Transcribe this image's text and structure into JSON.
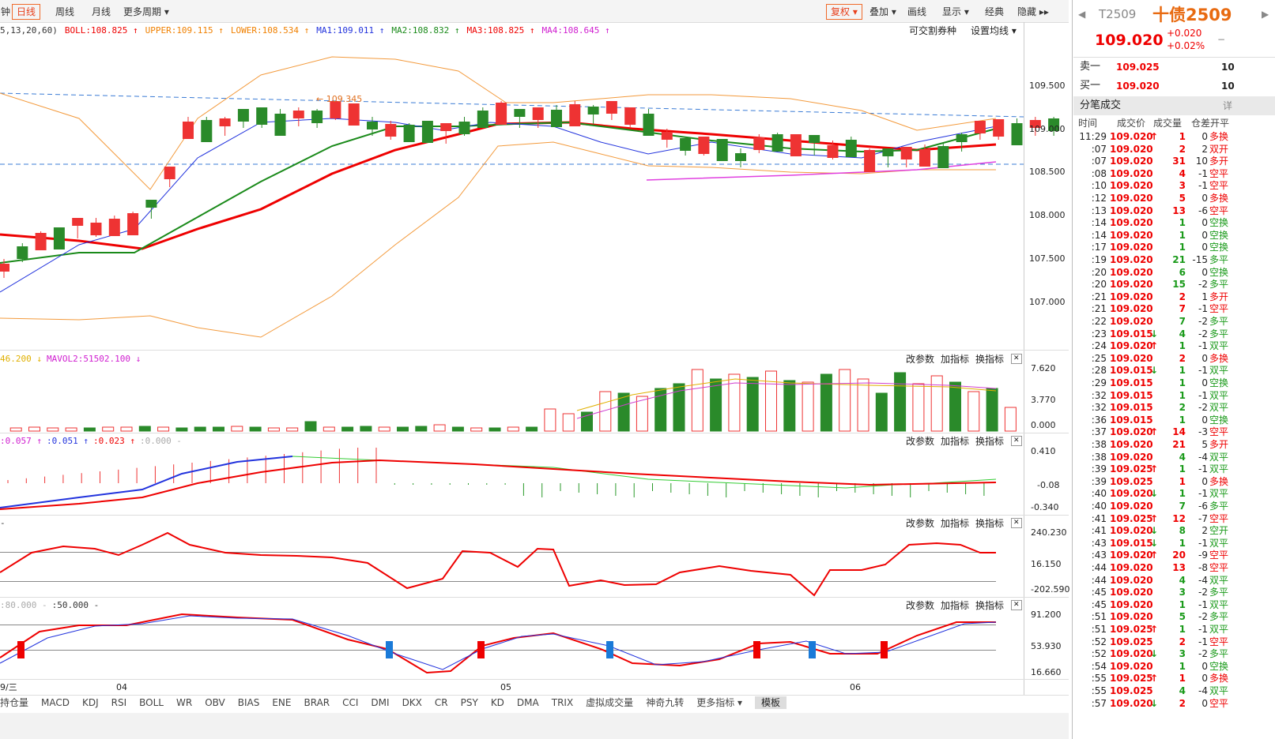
{
  "toolbar": {
    "left_tabs": [
      "钟",
      "日线",
      "周线",
      "月线",
      "更多周期 ▾"
    ],
    "right_tools": [
      "复权 ▾",
      "叠加 ▾",
      "画线",
      "显示 ▾",
      "经典",
      "隐藏 ▸▸"
    ]
  },
  "indicator_line": {
    "params": "5,13,20,60)",
    "items": [
      "BOLL:108.825 ↑",
      "UPPER:109.115 ↑",
      "LOWER:108.534 ↑",
      "MA1:109.011 ↑",
      "MA2:108.832 ↑",
      "MA3:108.825 ↑",
      "MA4:108.645 ↑"
    ],
    "links": [
      "可交割券种",
      "设置均线 ▾"
    ]
  },
  "price_axis": [
    "109.500",
    "109.000",
    "108.500",
    "108.000",
    "107.500",
    "107.000"
  ],
  "annotation": "← 109.345",
  "panels": [
    {
      "legend": [
        "46.200 ↓",
        "MAVOL2:51502.100 ↓"
      ],
      "axis": [
        "7.620",
        "3.770",
        "0.000"
      ]
    },
    {
      "legend": [
        ":0.057 ↑",
        ":0.051 ↑",
        ":0.023 ↑",
        ":0.000 -"
      ],
      "axis": [
        "0.410",
        "-0.08",
        "-0.340"
      ]
    },
    {
      "legend": [
        "-"
      ],
      "axis": [
        "240.230",
        "16.150",
        "-202.590"
      ]
    },
    {
      "legend": [
        ":80.000 -",
        ":50.000 -"
      ],
      "axis": [
        "91.200",
        "53.930",
        "16.660"
      ]
    }
  ],
  "panel_buttons": [
    "改参数",
    "加指标",
    "换指标"
  ],
  "x_axis": [
    "9/三",
    "04",
    "05",
    "06"
  ],
  "bottom_tabs": [
    "持仓量",
    "MACD",
    "KDJ",
    "RSI",
    "BOLL",
    "WR",
    "OBV",
    "BIAS",
    "ENE",
    "BRAR",
    "CCI",
    "DMI",
    "DKX",
    "CR",
    "PSY",
    "KD",
    "DMA",
    "TRIX",
    "虚拟成交量",
    "神奇九转",
    "更多指标 ▾",
    "模板"
  ],
  "quote": {
    "code": "T2509",
    "name": "十债2509",
    "price": "109.020",
    "change": "+0.020",
    "percent": "+0.02%"
  },
  "book": [
    {
      "label": "卖一",
      "price": "109.025",
      "qty": 10
    },
    {
      "label": "买一",
      "price": "109.020",
      "qty": 10
    }
  ],
  "trades": {
    "title": "分笔成交",
    "detail": "详",
    "header": [
      "时间",
      "成交价",
      "成交量",
      "仓差",
      "开平"
    ],
    "rows": [
      {
        "time": "11:29",
        "price": "109.020",
        "arrow": "↑",
        "volume": 1,
        "diff": 0,
        "type": "多换"
      },
      {
        "time": ":07",
        "price": "109.020",
        "volume": 2,
        "diff": 2,
        "type": "双开"
      },
      {
        "time": ":07",
        "price": "109.020",
        "volume": 31,
        "diff": 10,
        "type": "多开"
      },
      {
        "time": ":08",
        "price": "109.020",
        "volume": 4,
        "diff": -1,
        "type": "空平"
      },
      {
        "time": ":10",
        "price": "109.020",
        "volume": 3,
        "diff": -1,
        "type": "空平"
      },
      {
        "time": ":12",
        "price": "109.020",
        "volume": 5,
        "diff": 0,
        "type": "多换"
      },
      {
        "time": ":13",
        "price": "109.020",
        "volume": 13,
        "diff": -6,
        "type": "空平"
      },
      {
        "time": ":14",
        "price": "109.020",
        "volume": 1,
        "diff": 0,
        "type": "空换"
      },
      {
        "time": ":14",
        "price": "109.020",
        "volume": 1,
        "diff": 0,
        "type": "空换"
      },
      {
        "time": ":17",
        "price": "109.020",
        "volume": 1,
        "diff": 0,
        "type": "空换"
      },
      {
        "time": ":19",
        "price": "109.020",
        "volume": 21,
        "diff": -15,
        "type": "多平"
      },
      {
        "time": ":20",
        "price": "109.020",
        "volume": 6,
        "diff": 0,
        "type": "空换"
      },
      {
        "time": ":20",
        "price": "109.020",
        "volume": 15,
        "diff": -2,
        "type": "多平"
      },
      {
        "time": ":21",
        "price": "109.020",
        "volume": 2,
        "diff": 1,
        "type": "多开"
      },
      {
        "time": ":21",
        "price": "109.020",
        "volume": 7,
        "diff": -1,
        "type": "空平"
      },
      {
        "time": ":22",
        "price": "109.020",
        "volume": 7,
        "diff": -2,
        "type": "多平"
      },
      {
        "time": ":23",
        "price": "109.015",
        "arrow": "↓",
        "volume": 4,
        "diff": -2,
        "type": "多平"
      },
      {
        "time": ":24",
        "price": "109.020",
        "arrow": "↑",
        "volume": 1,
        "diff": -1,
        "type": "双平"
      },
      {
        "time": ":25",
        "price": "109.020",
        "volume": 2,
        "diff": 0,
        "type": "多换"
      },
      {
        "time": ":28",
        "price": "109.015",
        "arrow": "↓",
        "volume": 1,
        "diff": -1,
        "type": "双平"
      },
      {
        "time": ":29",
        "price": "109.015",
        "volume": 1,
        "diff": 0,
        "type": "空换"
      },
      {
        "time": ":32",
        "price": "109.015",
        "volume": 1,
        "diff": -1,
        "type": "双平"
      },
      {
        "time": ":32",
        "price": "109.015",
        "volume": 2,
        "diff": -2,
        "type": "双平"
      },
      {
        "time": ":36",
        "price": "109.015",
        "volume": 1,
        "diff": 0,
        "type": "空换"
      },
      {
        "time": ":37",
        "price": "109.020",
        "arrow": "↑",
        "volume": 14,
        "diff": -3,
        "type": "空平"
      },
      {
        "time": ":38",
        "price": "109.020",
        "volume": 21,
        "diff": 5,
        "type": "多开"
      },
      {
        "time": ":38",
        "price": "109.020",
        "volume": 4,
        "diff": -4,
        "type": "双平"
      },
      {
        "time": ":39",
        "price": "109.025",
        "arrow": "↑",
        "volume": 1,
        "diff": -1,
        "type": "双平"
      },
      {
        "time": ":39",
        "price": "109.025",
        "volume": 1,
        "diff": 0,
        "type": "多换"
      },
      {
        "time": ":40",
        "price": "109.020",
        "arrow": "↓",
        "volume": 1,
        "diff": -1,
        "type": "双平"
      },
      {
        "time": ":40",
        "price": "109.020",
        "volume": 7,
        "diff": -6,
        "type": "多平"
      },
      {
        "time": ":41",
        "price": "109.025",
        "arrow": "↑",
        "volume": 12,
        "diff": -7,
        "type": "空平"
      },
      {
        "time": ":41",
        "price": "109.020",
        "arrow": "↓",
        "volume": 8,
        "diff": 2,
        "type": "空开"
      },
      {
        "time": ":43",
        "price": "109.015",
        "arrow": "↓",
        "volume": 1,
        "diff": -1,
        "type": "双平"
      },
      {
        "time": ":43",
        "price": "109.020",
        "arrow": "↑",
        "volume": 20,
        "diff": -9,
        "type": "空平"
      },
      {
        "time": ":44",
        "price": "109.020",
        "volume": 13,
        "diff": -8,
        "type": "空平"
      },
      {
        "time": ":44",
        "price": "109.020",
        "volume": 4,
        "diff": -4,
        "type": "双平"
      },
      {
        "time": ":45",
        "price": "109.020",
        "volume": 3,
        "diff": -2,
        "type": "多平"
      },
      {
        "time": ":45",
        "price": "109.020",
        "volume": 1,
        "diff": -1,
        "type": "双平"
      },
      {
        "time": ":51",
        "price": "109.020",
        "volume": 5,
        "diff": -2,
        "type": "多平"
      },
      {
        "time": ":51",
        "price": "109.025",
        "arrow": "↑",
        "volume": 1,
        "diff": -1,
        "type": "双平"
      },
      {
        "time": ":52",
        "price": "109.025",
        "volume": 2,
        "diff": -1,
        "type": "空平"
      },
      {
        "time": ":52",
        "price": "109.020",
        "arrow": "↓",
        "volume": 3,
        "diff": -2,
        "type": "多平"
      },
      {
        "time": ":54",
        "price": "109.020",
        "volume": 1,
        "diff": 0,
        "type": "空换"
      },
      {
        "time": ":55",
        "price": "109.025",
        "arrow": "↑",
        "volume": 1,
        "diff": 0,
        "type": "多换"
      },
      {
        "time": ":55",
        "price": "109.025",
        "volume": 4,
        "diff": -4,
        "type": "双平"
      },
      {
        "time": ":57",
        "price": "109.020",
        "arrow": "↓",
        "volume": 2,
        "diff": 0,
        "type": "空平"
      }
    ]
  }
}
